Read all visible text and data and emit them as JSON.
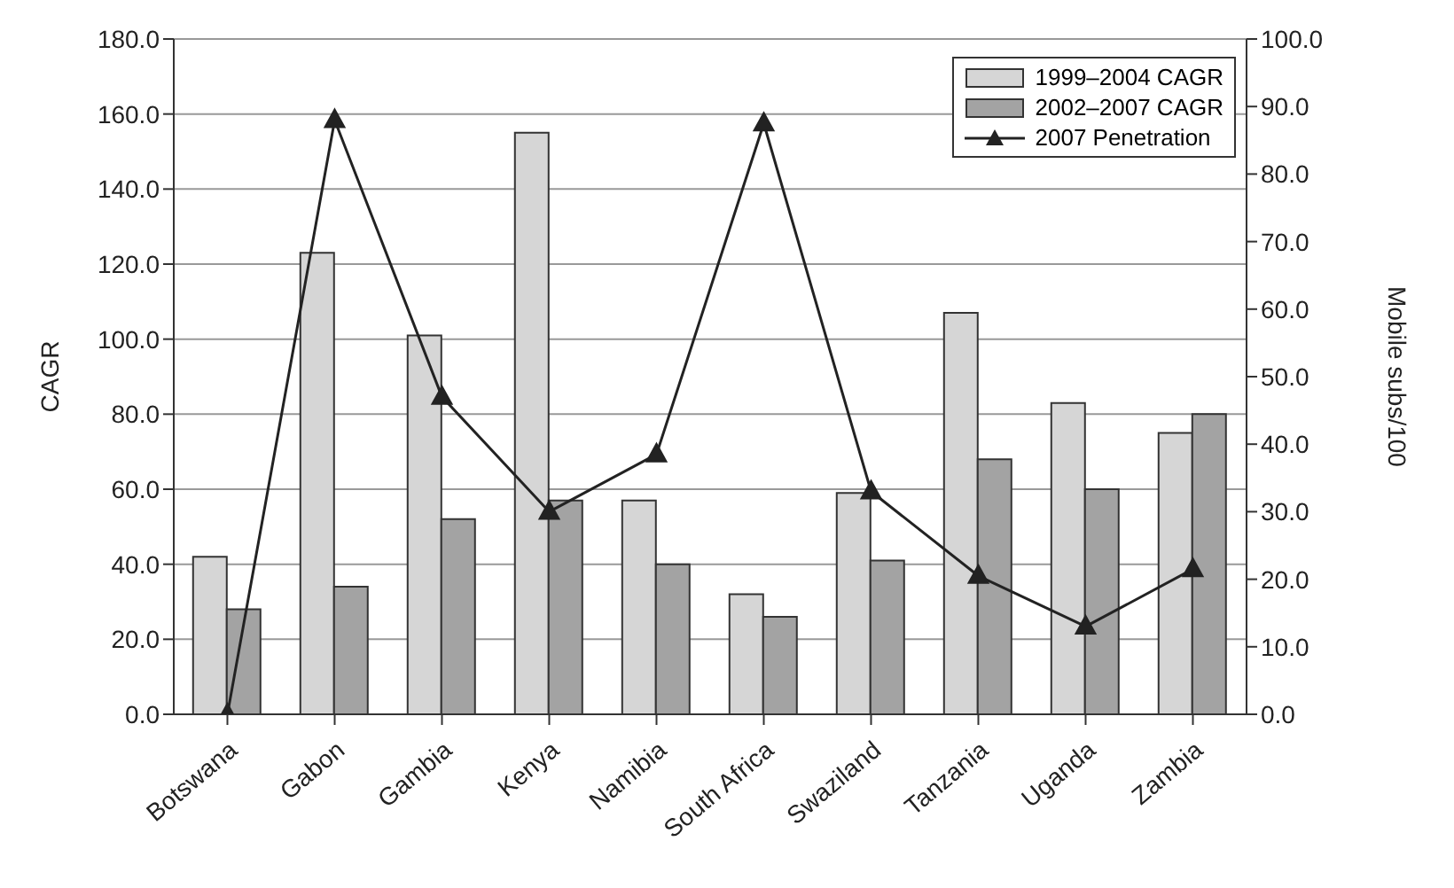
{
  "chart_data": {
    "type": "bar",
    "ylabel": "CAGR",
    "y2label": "Mobile subs/100",
    "categories": [
      "Botswana",
      "Gabon",
      "Gambia",
      "Kenya",
      "Namibia",
      "South Africa",
      "Swaziland",
      "Tanzania",
      "Uganda",
      "Zambia"
    ],
    "series": [
      {
        "name": "1999–2004 CAGR",
        "color": "#d6d6d6",
        "values": [
          42,
          123,
          101,
          155,
          57,
          32,
          59,
          107,
          83,
          75
        ]
      },
      {
        "name": "2002–2007 CAGR",
        "color": "#a3a3a3",
        "values": [
          28,
          34,
          52,
          57,
          40,
          26,
          41,
          68,
          60,
          80
        ]
      },
      {
        "name": "2007 Penetration",
        "type": "line",
        "axis": "y2",
        "color": "#222222",
        "marker": "triangle",
        "values": [
          0,
          88,
          47,
          30,
          38.5,
          87.5,
          33,
          20.5,
          13,
          21.5
        ]
      }
    ],
    "ylim": [
      0,
      180
    ],
    "yticks": [
      {
        "value": 0,
        "label": "0.0"
      },
      {
        "value": 20,
        "label": "20.0"
      },
      {
        "value": 40,
        "label": "40.0"
      },
      {
        "value": 60,
        "label": "60.0"
      },
      {
        "value": 80,
        "label": "80.0"
      },
      {
        "value": 100,
        "label": "100.0"
      },
      {
        "value": 120,
        "label": "120.0"
      },
      {
        "value": 140,
        "label": "140.0"
      },
      {
        "value": 160,
        "label": "160.0"
      },
      {
        "value": 180,
        "label": "180.0"
      }
    ],
    "y2lim": [
      0,
      100
    ],
    "y2ticks": [
      {
        "value": 0,
        "label": "0.0"
      },
      {
        "value": 10,
        "label": "10.0"
      },
      {
        "value": 20,
        "label": "20.0"
      },
      {
        "value": 30,
        "label": "30.0"
      },
      {
        "value": 40,
        "label": "40.0"
      },
      {
        "value": 50,
        "label": "50.0"
      },
      {
        "value": 60,
        "label": "60.0"
      },
      {
        "value": 70,
        "label": "70.0"
      },
      {
        "value": 80,
        "label": "80.0"
      },
      {
        "value": 90,
        "label": "90.0"
      },
      {
        "value": 100,
        "label": "100.0"
      }
    ],
    "grid": "y",
    "legend": "top right"
  }
}
